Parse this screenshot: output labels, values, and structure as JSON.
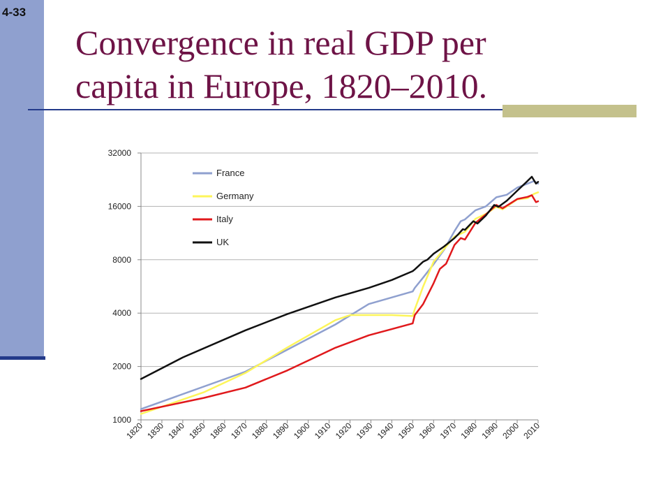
{
  "slide": {
    "number": "4-33",
    "title_line1": "Convergence in real GDP per",
    "title_line2": "capita in Europe, 1820–2010."
  },
  "colors": {
    "sidebar": "#8fa0cf",
    "sidebar_edge": "#233a8a",
    "title": "#6e1346",
    "rule": "#233a8a",
    "accent_block": "#c4c18c"
  },
  "chart_data": {
    "type": "line",
    "title": "",
    "xlabel": "",
    "ylabel": "",
    "y_scale": "log2",
    "xlim": [
      1820,
      2010
    ],
    "ylim": [
      1000,
      32000
    ],
    "x_ticks": [
      "1820",
      "1830",
      "1840",
      "1850",
      "1860",
      "1870",
      "1880",
      "1890",
      "1900",
      "1910",
      "1920",
      "1930",
      "1940",
      "1950",
      "1960",
      "1970",
      "1980",
      "1990",
      "2000",
      "2010"
    ],
    "y_ticks": [
      {
        "value": 1000,
        "label": "1000"
      },
      {
        "value": 2000,
        "label": "2000"
      },
      {
        "value": 4000,
        "label": "4000"
      },
      {
        "value": 8000,
        "label": "8000"
      },
      {
        "value": 16000,
        "label": "16000"
      },
      {
        "value": 32000,
        "label": "32000"
      }
    ],
    "grid": "horizontal",
    "legend_position": "top-left",
    "series": [
      {
        "name": "France",
        "color": "#8fa0cf",
        "points": [
          [
            1820,
            1150
          ],
          [
            1870,
            1870
          ],
          [
            1913,
            3450
          ],
          [
            1929,
            4500
          ],
          [
            1950,
            5300
          ],
          [
            1951,
            5550
          ],
          [
            1955,
            6350
          ],
          [
            1960,
            7550
          ],
          [
            1965,
            9100
          ],
          [
            1970,
            11600
          ],
          [
            1973,
            13200
          ],
          [
            1975,
            13500
          ],
          [
            1980,
            15200
          ],
          [
            1985,
            16000
          ],
          [
            1990,
            18000
          ],
          [
            1995,
            18600
          ],
          [
            2000,
            20400
          ],
          [
            2005,
            21500
          ],
          [
            2008,
            22200
          ],
          [
            2010,
            21500
          ]
        ]
      },
      {
        "name": "Germany",
        "color": "#fdf55a",
        "points": [
          [
            1820,
            1080
          ],
          [
            1850,
            1430
          ],
          [
            1870,
            1840
          ],
          [
            1890,
            2560
          ],
          [
            1913,
            3650
          ],
          [
            1920,
            3900
          ],
          [
            1930,
            3900
          ],
          [
            1940,
            3900
          ],
          [
            1950,
            3850
          ],
          [
            1951,
            4200
          ],
          [
            1955,
            5650
          ],
          [
            1960,
            7800
          ],
          [
            1965,
            9200
          ],
          [
            1970,
            10800
          ],
          [
            1975,
            11500
          ],
          [
            1980,
            13600
          ],
          [
            1985,
            14500
          ],
          [
            1990,
            15900
          ],
          [
            1993,
            15400
          ],
          [
            2000,
            17500
          ],
          [
            2005,
            17800
          ],
          [
            2008,
            18800
          ],
          [
            2010,
            19200
          ]
        ]
      },
      {
        "name": "Italy",
        "color": "#e0191c",
        "points": [
          [
            1820,
            1120
          ],
          [
            1850,
            1330
          ],
          [
            1870,
            1520
          ],
          [
            1890,
            1900
          ],
          [
            1913,
            2550
          ],
          [
            1929,
            3000
          ],
          [
            1940,
            3250
          ],
          [
            1950,
            3500
          ],
          [
            1951,
            3900
          ],
          [
            1955,
            4500
          ],
          [
            1960,
            5900
          ],
          [
            1963,
            7100
          ],
          [
            1966,
            7600
          ],
          [
            1970,
            9700
          ],
          [
            1973,
            10600
          ],
          [
            1975,
            10400
          ],
          [
            1980,
            12900
          ],
          [
            1985,
            14400
          ],
          [
            1990,
            16300
          ],
          [
            1993,
            15600
          ],
          [
            2000,
            17600
          ],
          [
            2005,
            18100
          ],
          [
            2007,
            18500
          ],
          [
            2009,
            16900
          ],
          [
            2010,
            17100
          ]
        ]
      },
      {
        "name": "UK",
        "color": "#111111",
        "points": [
          [
            1820,
            1700
          ],
          [
            1840,
            2250
          ],
          [
            1870,
            3200
          ],
          [
            1890,
            3950
          ],
          [
            1913,
            4900
          ],
          [
            1929,
            5550
          ],
          [
            1940,
            6150
          ],
          [
            1950,
            6900
          ],
          [
            1951,
            7050
          ],
          [
            1955,
            7800
          ],
          [
            1957,
            8000
          ],
          [
            1960,
            8650
          ],
          [
            1965,
            9500
          ],
          [
            1970,
            10600
          ],
          [
            1972,
            11200
          ],
          [
            1974,
            11900
          ],
          [
            1975,
            11800
          ],
          [
            1979,
            13200
          ],
          [
            1981,
            12800
          ],
          [
            1985,
            14200
          ],
          [
            1989,
            16300
          ],
          [
            1991,
            15900
          ],
          [
            1995,
            17200
          ],
          [
            2000,
            19600
          ],
          [
            2004,
            21700
          ],
          [
            2007,
            23500
          ],
          [
            2009,
            21500
          ],
          [
            2010,
            22000
          ]
        ]
      }
    ]
  }
}
